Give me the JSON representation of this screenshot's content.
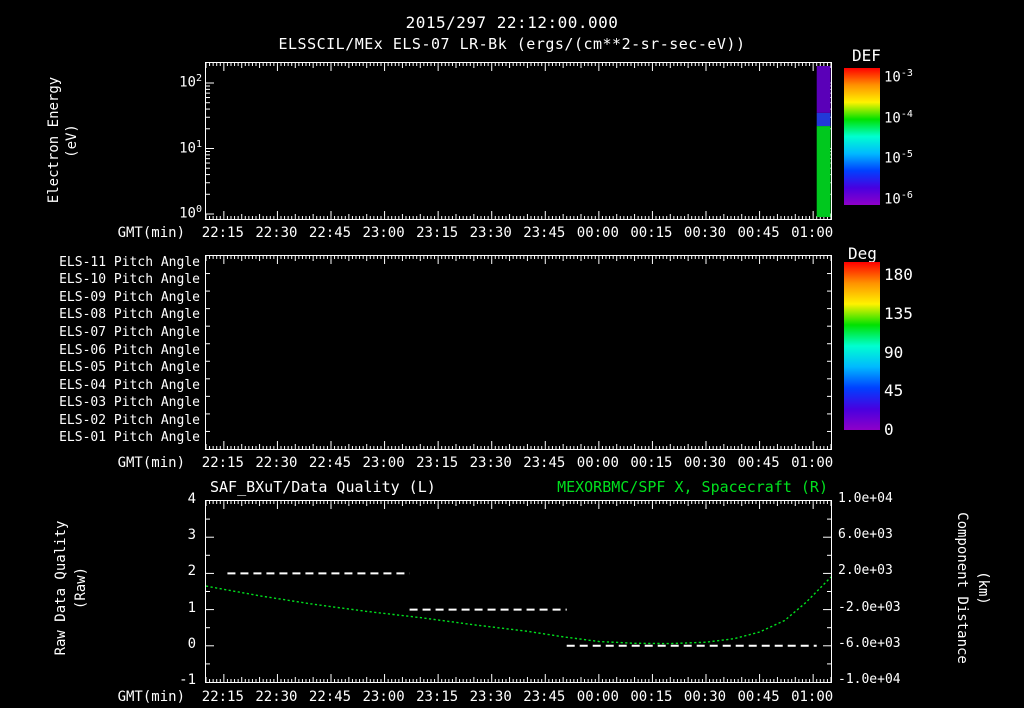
{
  "header": {
    "datetime_title": "2015/297 22:12:00.000",
    "plot_title": "ELSSCIL/MEx ELS-07 LR-Bk (ergs/(cm**2-sr-sec-eV))"
  },
  "time_axis": {
    "label": "GMT(min)",
    "ticks": [
      "22:15",
      "22:30",
      "22:45",
      "23:00",
      "23:15",
      "23:30",
      "23:45",
      "00:00",
      "00:15",
      "00:30",
      "00:45",
      "01:00"
    ],
    "tick_minutes": [
      15,
      30,
      45,
      60,
      75,
      90,
      105,
      120,
      135,
      150,
      165,
      180
    ],
    "domain_minutes": [
      10,
      185
    ],
    "t_unit": "minutes after 22:00 GMT"
  },
  "panel1": {
    "ylabel": "Electron Energy",
    "ylabel_units": "(eV)",
    "y_ticks": [
      {
        "mantissa": "10",
        "exp": "2"
      },
      {
        "mantissa": "10",
        "exp": "1"
      },
      {
        "mantissa": "10",
        "exp": "0"
      }
    ],
    "colorbar": {
      "title": "DEF",
      "ticks": [
        {
          "mantissa": "10",
          "exp": "-3"
        },
        {
          "mantissa": "10",
          "exp": "-4"
        },
        {
          "mantissa": "10",
          "exp": "-5"
        },
        {
          "mantissa": "10",
          "exp": "-6"
        }
      ]
    }
  },
  "panel2": {
    "row_labels": [
      "ELS-11 Pitch Angle",
      "ELS-10 Pitch Angle",
      "ELS-09 Pitch Angle",
      "ELS-08 Pitch Angle",
      "ELS-07 Pitch Angle",
      "ELS-06 Pitch Angle",
      "ELS-05 Pitch Angle",
      "ELS-04 Pitch Angle",
      "ELS-03 Pitch Angle",
      "ELS-02 Pitch Angle",
      "ELS-01 Pitch Angle"
    ],
    "colorbar": {
      "title": "Deg",
      "ticks": [
        "180",
        "135",
        "90",
        "45",
        "0"
      ]
    }
  },
  "panel3": {
    "title_left": "SAF_BXuT/Data Quality (L)",
    "title_right": "MEXORBMC/SPF X, Spacecraft (R)",
    "ylabel_left": "Raw Data Quality",
    "ylabel_left_units": "(Raw)",
    "ylabel_right": "Component Distance",
    "ylabel_right_units": "(km)",
    "y_ticks_left": [
      "4",
      "3",
      "2",
      "1",
      "0",
      "-1"
    ],
    "y_ticks_right": [
      "1.0e+04",
      "6.0e+03",
      "2.0e+03",
      "-2.0e+03",
      "-6.0e+03",
      "-1.0e+04"
    ]
  },
  "colors": {
    "text": "#ffffff",
    "background": "#000000",
    "accent_green": "#00e01e",
    "rainbow": [
      "#ff0000",
      "#ff9100",
      "#fff200",
      "#00e100",
      "#00ffd0",
      "#00b9ff",
      "#0040ff",
      "#4800e0",
      "#8f00c8"
    ]
  },
  "chart_data": [
    {
      "type": "heatmap",
      "panel": "electron-energy-spectrogram",
      "title": "ELSSCIL/MEx ELS-07 LR-Bk",
      "units": "ergs/(cm**2-sr-sec-eV)",
      "xlabel": "GMT(min)",
      "ylabel": "Electron Energy (eV)",
      "yscale": "log",
      "ylim": [
        1,
        250
      ],
      "x_ticks": [
        "22:15",
        "22:30",
        "22:45",
        "23:00",
        "23:15",
        "23:30",
        "23:45",
        "00:00",
        "00:15",
        "00:30",
        "00:45",
        "01:00"
      ],
      "colorbar": {
        "label": "DEF",
        "scale": "log",
        "ticks": [
          0.001,
          0.0001,
          1e-05,
          1e-06
        ]
      },
      "data_note": "panel is empty except a single data column at the far right edge (~01:02-01:05)",
      "columns": [
        {
          "time_min": [
            181,
            185
          ],
          "bands": [
            {
              "energy_eV": [
                1,
                22
              ],
              "def_approx": 3e-05,
              "color": "#00c81e"
            },
            {
              "energy_eV": [
                22,
                35
              ],
              "def_approx": 1e-05,
              "color": "#2238d8"
            },
            {
              "energy_eV": [
                35,
                250
              ],
              "def_approx": 1e-06,
              "color": "#5a00b8"
            }
          ]
        }
      ]
    },
    {
      "type": "heatmap",
      "panel": "pitch-angle-rows",
      "y_categories": [
        "ELS-11 Pitch Angle",
        "ELS-10 Pitch Angle",
        "ELS-09 Pitch Angle",
        "ELS-08 Pitch Angle",
        "ELS-07 Pitch Angle",
        "ELS-06 Pitch Angle",
        "ELS-05 Pitch Angle",
        "ELS-04 Pitch Angle",
        "ELS-03 Pitch Angle",
        "ELS-02 Pitch Angle",
        "ELS-01 Pitch Angle"
      ],
      "colorbar": {
        "label": "Deg",
        "ticks": [
          180,
          135,
          90,
          45,
          0
        ]
      },
      "columns": [],
      "data_note": "no data plotted in this panel"
    },
    {
      "type": "line",
      "panel": "quality-and-distance",
      "titles": [
        "SAF_BXuT/Data Quality (L)",
        "MEXORBMC/SPF X, Spacecraft (R)"
      ],
      "xlabel": "GMT(min)",
      "ylabel_left": "Raw Data Quality (Raw)",
      "ylim_left": [
        -1,
        4
      ],
      "ylabel_right": "Component Distance (km)",
      "ylim_right": [
        -10000,
        10000
      ],
      "x_ticks": [
        "22:15",
        "22:30",
        "22:45",
        "23:00",
        "23:15",
        "23:30",
        "23:45",
        "00:00",
        "00:15",
        "00:30",
        "00:45",
        "01:00"
      ],
      "t_unit": "minutes after 22:00 GMT",
      "series": [
        {
          "name": "SAF_BXuT/Data Quality",
          "axis": "left",
          "color": "#ffffff",
          "style": "dashed",
          "segments": [
            {
              "t0_min": 16,
              "t1_min": 67,
              "value": 2
            },
            {
              "t0_min": 67,
              "t1_min": 111,
              "value": 1
            },
            {
              "t0_min": 111,
              "t1_min": 181,
              "value": 0
            }
          ]
        },
        {
          "name": "MEXORBMC/SPF X, Spacecraft",
          "axis": "right",
          "color": "#00e01e",
          "style": "dotted",
          "points": [
            [
              10,
              600
            ],
            [
              25,
              -480
            ],
            [
              40,
              -1400
            ],
            [
              55,
              -2200
            ],
            [
              70,
              -2880
            ],
            [
              85,
              -3680
            ],
            [
              100,
              -4400
            ],
            [
              110,
              -5000
            ],
            [
              120,
              -5520
            ],
            [
              130,
              -5720
            ],
            [
              140,
              -5760
            ],
            [
              150,
              -5600
            ],
            [
              158,
              -5200
            ],
            [
              165,
              -4480
            ],
            [
              172,
              -3200
            ],
            [
              178,
              -1200
            ],
            [
              182,
              400
            ],
            [
              185,
              1600
            ]
          ]
        }
      ]
    }
  ]
}
